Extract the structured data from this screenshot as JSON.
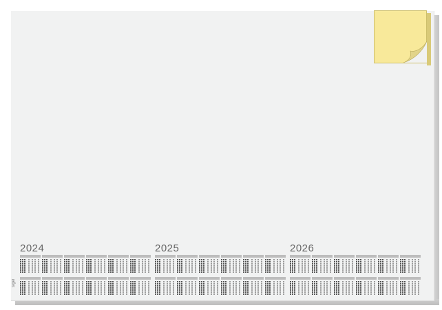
{
  "calendar": {
    "years": [
      "2024",
      "2025",
      "2026"
    ],
    "months_per_year": 12,
    "brand": "sigel"
  },
  "colors": {
    "pad": "#f1f2f2",
    "sticky_note": "#f8e99a",
    "month_header": "#bdbdbd",
    "weekend_cells": "#555555"
  }
}
